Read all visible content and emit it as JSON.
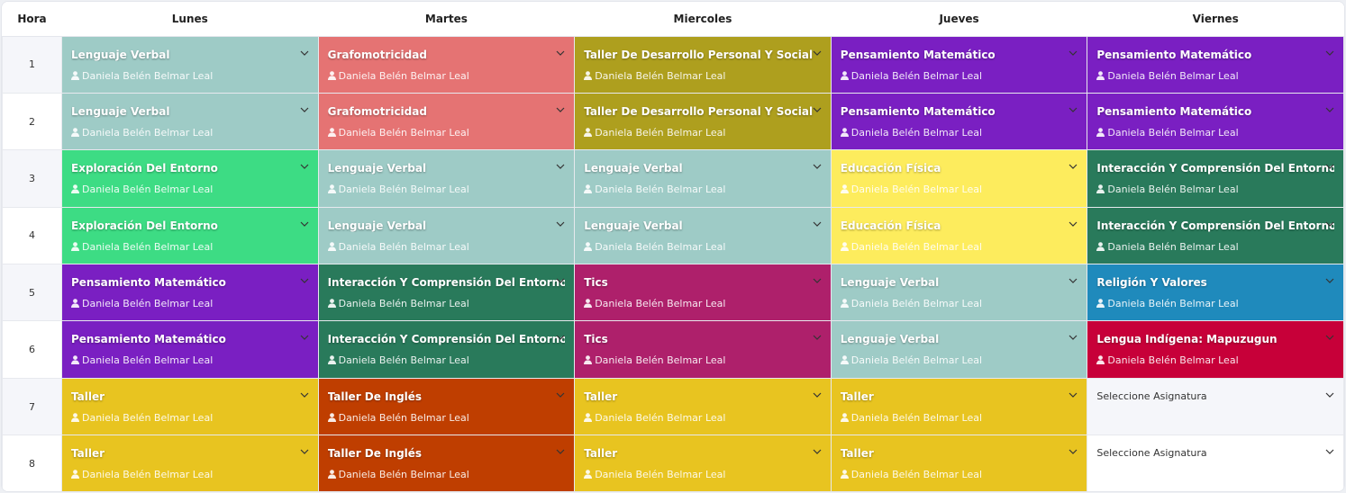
{
  "header": {
    "hora": "Hora",
    "days": [
      "Lunes",
      "Martes",
      "Miercoles",
      "Jueves",
      "Viernes"
    ]
  },
  "placeholder": "Seleccione Asignatura",
  "subject_colors": {
    "Lenguaje Verbal": "#9ecbc6",
    "Grafomotricidad": "#e57373",
    "Taller De Desarrollo Personal Y Social": "#ae9f1e",
    "Pensamiento Matemático": "#7a1fc2",
    "Exploración Del Entorno": "#3ddc84",
    "Educación Física": "#fdec5d",
    "Interacción Y Comprensión Del Entorno": "#297a5b",
    "Tics": "#ae206b",
    "Religión Y Valores": "#1f8abc",
    "Lengua Indígena: Mapuzugun": "#c70039",
    "Taller": "#e8c420",
    "Taller De Inglés": "#bf3e00"
  },
  "rows": [
    {
      "hora": "1",
      "cells": [
        {
          "subject": "Lenguaje Verbal",
          "teacher": "Daniela Belén Belmar Leal"
        },
        {
          "subject": "Grafomotricidad",
          "teacher": "Daniela Belén Belmar Leal"
        },
        {
          "subject": "Taller De Desarrollo Personal Y Social",
          "teacher": "Daniela Belén Belmar Leal"
        },
        {
          "subject": "Pensamiento Matemático",
          "teacher": "Daniela Belén Belmar Leal"
        },
        {
          "subject": "Pensamiento Matemático",
          "teacher": "Daniela Belén Belmar Leal"
        }
      ]
    },
    {
      "hora": "2",
      "cells": [
        {
          "subject": "Lenguaje Verbal",
          "teacher": "Daniela Belén Belmar Leal"
        },
        {
          "subject": "Grafomotricidad",
          "teacher": "Daniela Belén Belmar Leal"
        },
        {
          "subject": "Taller De Desarrollo Personal Y Social",
          "teacher": "Daniela Belén Belmar Leal"
        },
        {
          "subject": "Pensamiento Matemático",
          "teacher": "Daniela Belén Belmar Leal"
        },
        {
          "subject": "Pensamiento Matemático",
          "teacher": "Daniela Belén Belmar Leal"
        }
      ]
    },
    {
      "hora": "3",
      "cells": [
        {
          "subject": "Exploración Del Entorno",
          "teacher": "Daniela Belén Belmar Leal"
        },
        {
          "subject": "Lenguaje Verbal",
          "teacher": "Daniela Belén Belmar Leal"
        },
        {
          "subject": "Lenguaje Verbal",
          "teacher": "Daniela Belén Belmar Leal"
        },
        {
          "subject": "Educación Física",
          "teacher": "Daniela Belén Belmar Leal"
        },
        {
          "subject": "Interacción Y Comprensión Del Entorno",
          "teacher": "Daniela Belén Belmar Leal"
        }
      ]
    },
    {
      "hora": "4",
      "cells": [
        {
          "subject": "Exploración Del Entorno",
          "teacher": "Daniela Belén Belmar Leal"
        },
        {
          "subject": "Lenguaje Verbal",
          "teacher": "Daniela Belén Belmar Leal"
        },
        {
          "subject": "Lenguaje Verbal",
          "teacher": "Daniela Belén Belmar Leal"
        },
        {
          "subject": "Educación Física",
          "teacher": "Daniela Belén Belmar Leal"
        },
        {
          "subject": "Interacción Y Comprensión Del Entorno",
          "teacher": "Daniela Belén Belmar Leal"
        }
      ]
    },
    {
      "hora": "5",
      "cells": [
        {
          "subject": "Pensamiento Matemático",
          "teacher": "Daniela Belén Belmar Leal"
        },
        {
          "subject": "Interacción Y Comprensión Del Entorno",
          "teacher": "Daniela Belén Belmar Leal"
        },
        {
          "subject": "Tics",
          "teacher": "Daniela Belén Belmar Leal"
        },
        {
          "subject": "Lenguaje Verbal",
          "teacher": "Daniela Belén Belmar Leal"
        },
        {
          "subject": "Religión Y Valores",
          "teacher": "Daniela Belén Belmar Leal"
        }
      ]
    },
    {
      "hora": "6",
      "cells": [
        {
          "subject": "Pensamiento Matemático",
          "teacher": "Daniela Belén Belmar Leal"
        },
        {
          "subject": "Interacción Y Comprensión Del Entorno",
          "teacher": "Daniela Belén Belmar Leal"
        },
        {
          "subject": "Tics",
          "teacher": "Daniela Belén Belmar Leal"
        },
        {
          "subject": "Lenguaje Verbal",
          "teacher": "Daniela Belén Belmar Leal"
        },
        {
          "subject": "Lengua Indígena: Mapuzugun",
          "teacher": "Daniela Belén Belmar Leal"
        }
      ]
    },
    {
      "hora": "7",
      "cells": [
        {
          "subject": "Taller",
          "teacher": "Daniela Belén Belmar Leal"
        },
        {
          "subject": "Taller De Inglés",
          "teacher": "Daniela Belén Belmar Leal"
        },
        {
          "subject": "Taller",
          "teacher": "Daniela Belén Belmar Leal"
        },
        {
          "subject": "Taller",
          "teacher": "Daniela Belén Belmar Leal"
        },
        {
          "subject": null,
          "teacher": null
        }
      ]
    },
    {
      "hora": "8",
      "cells": [
        {
          "subject": "Taller",
          "teacher": "Daniela Belén Belmar Leal"
        },
        {
          "subject": "Taller De Inglés",
          "teacher": "Daniela Belén Belmar Leal"
        },
        {
          "subject": "Taller",
          "teacher": "Daniela Belén Belmar Leal"
        },
        {
          "subject": "Taller",
          "teacher": "Daniela Belén Belmar Leal"
        },
        {
          "subject": null,
          "teacher": null
        }
      ]
    }
  ]
}
